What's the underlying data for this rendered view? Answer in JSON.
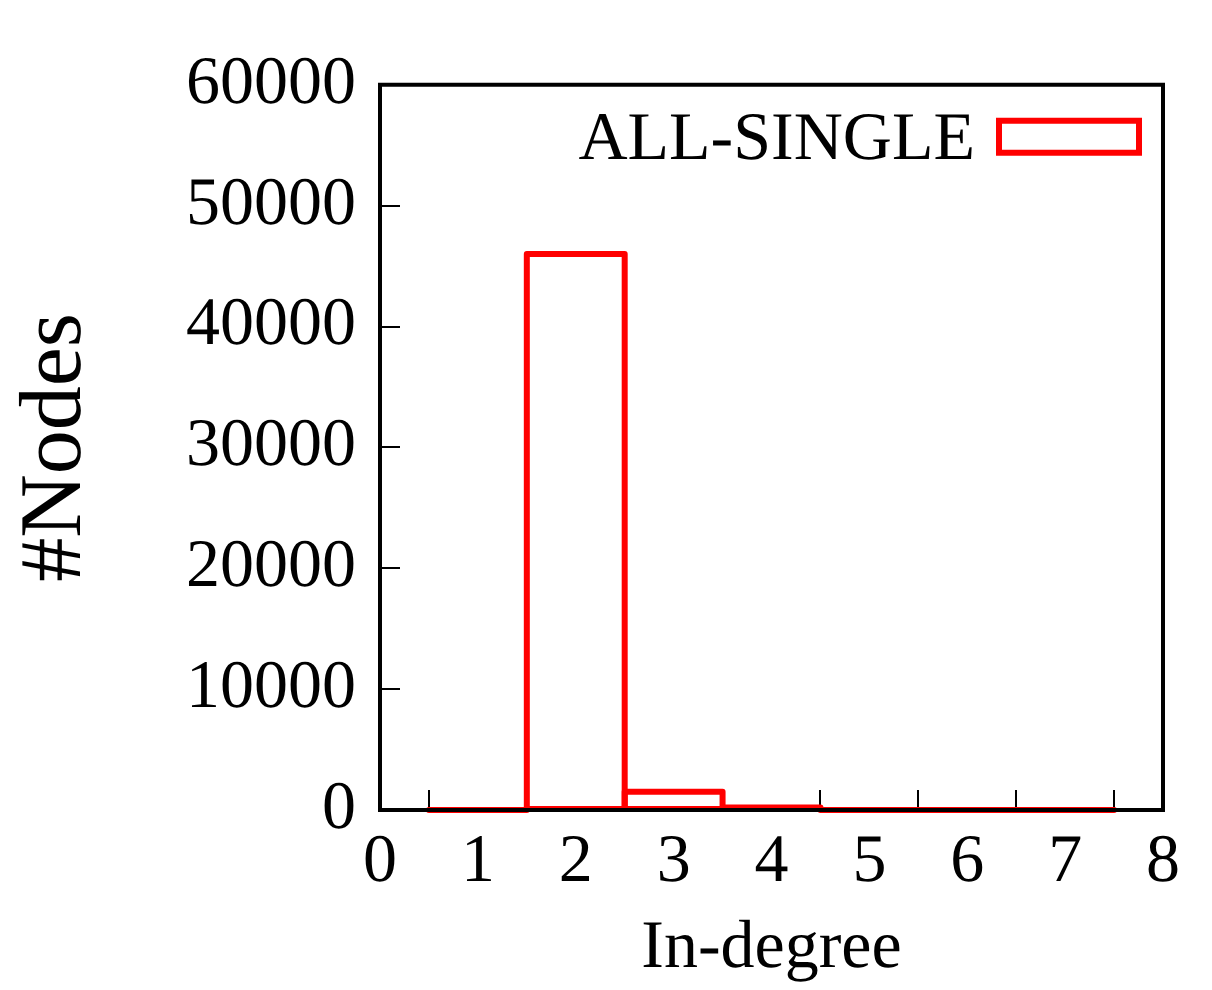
{
  "chart_data": {
    "type": "histogram",
    "xlabel": "In-degree",
    "ylabel": "#Nodes",
    "bins": [
      0.5,
      1.5,
      2.5,
      3.5,
      4.5,
      5.5,
      6.5,
      7.5
    ],
    "series": [
      {
        "name": "ALL-SINGLE",
        "color": "#ff0000",
        "values": [
          0,
          46000,
          1500,
          200,
          0,
          0,
          0
        ]
      }
    ],
    "xlim": [
      0,
      8
    ],
    "xticks": [
      0,
      1,
      2,
      3,
      4,
      5,
      6,
      7,
      8
    ],
    "ylim": [
      0,
      60000
    ],
    "yticks": [
      0,
      10000,
      20000,
      30000,
      40000,
      50000,
      60000
    ],
    "grid": false,
    "legend": "top right"
  }
}
